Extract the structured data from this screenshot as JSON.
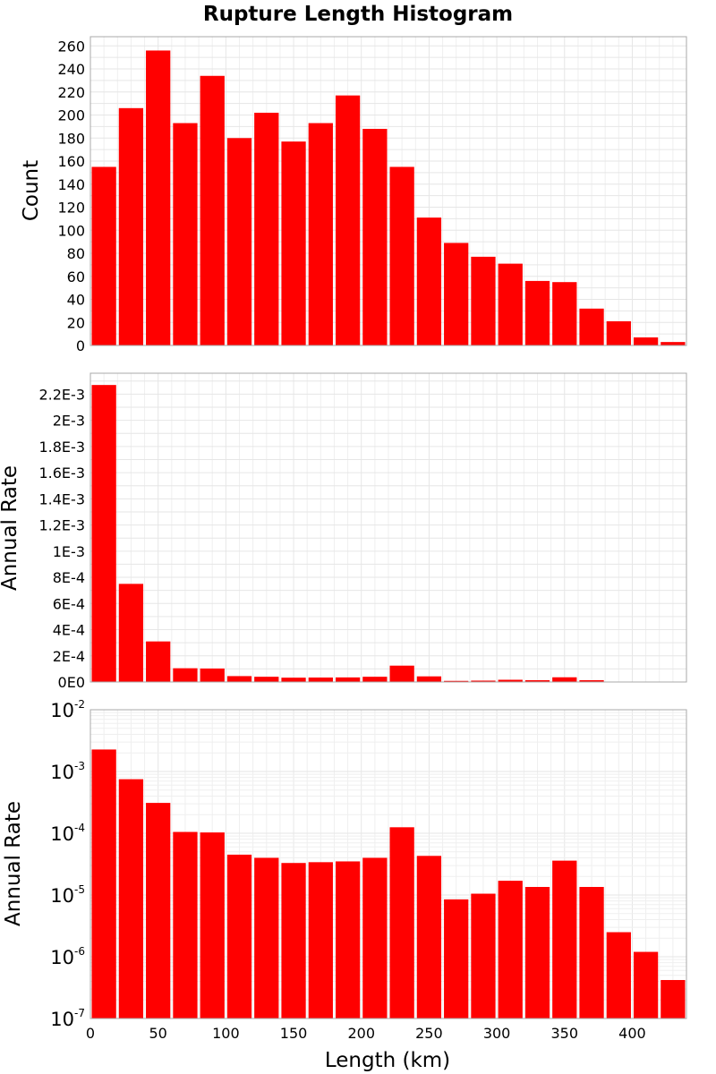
{
  "title": "Rupture Length Histogram",
  "chart_data": [
    {
      "type": "bar",
      "title": "Rupture Length Histogram",
      "xlabel": "",
      "ylabel": "Count",
      "bin_width": 20,
      "x": [
        10,
        30,
        50,
        70,
        90,
        110,
        130,
        150,
        170,
        190,
        210,
        230,
        250,
        270,
        290,
        310,
        330,
        350,
        370,
        390,
        410,
        430
      ],
      "values": [
        155,
        206,
        256,
        193,
        234,
        180,
        202,
        177,
        193,
        217,
        188,
        155,
        111,
        89,
        77,
        71,
        56,
        55,
        32,
        21,
        7,
        3
      ],
      "xlim": [
        0,
        440
      ],
      "ylim": [
        0,
        268
      ],
      "yticks": [
        0,
        20,
        40,
        60,
        80,
        100,
        120,
        140,
        160,
        180,
        200,
        220,
        240,
        260
      ],
      "ytick_labels": [
        "0",
        "20",
        "40",
        "60",
        "80",
        "100",
        "120",
        "140",
        "160",
        "180",
        "200",
        "220",
        "240",
        "260"
      ],
      "grid": true,
      "color": "#ff0000"
    },
    {
      "type": "bar",
      "xlabel": "",
      "ylabel": "Annual Rate",
      "bin_width": 20,
      "x": [
        10,
        30,
        50,
        70,
        90,
        110,
        130,
        150,
        170,
        190,
        210,
        230,
        250,
        270,
        290,
        310,
        330,
        350,
        370,
        390,
        410,
        430
      ],
      "values": [
        0.00227,
        0.00075,
        0.00031,
        0.000105,
        0.000103,
        4.5e-05,
        4e-05,
        3.3e-05,
        3.4e-05,
        3.5e-05,
        4e-05,
        0.000125,
        4.3e-05,
        8.5e-06,
        1.05e-05,
        1.7e-05,
        1.35e-05,
        3.6e-05,
        1.35e-05,
        2.5e-06,
        1.2e-06,
        4.2e-07
      ],
      "xlim": [
        0,
        440
      ],
      "ylim": [
        0,
        0.00236
      ],
      "yticks": [
        0,
        0.0002,
        0.0004,
        0.0006,
        0.0008,
        0.001,
        0.0012,
        0.0014,
        0.0016,
        0.0018,
        0.002,
        0.0022
      ],
      "ytick_labels": [
        "0E0",
        "2E-4",
        "4E-4",
        "6E-4",
        "8E-4",
        "1E-3",
        "1.2E-3",
        "1.4E-3",
        "1.6E-3",
        "1.8E-3",
        "2E-3",
        "2.2E-3"
      ],
      "grid": true,
      "color": "#ff0000"
    },
    {
      "type": "bar",
      "xlabel": "Length (km)",
      "ylabel": "Annual Rate",
      "yscale": "log",
      "bin_width": 20,
      "x": [
        10,
        30,
        50,
        70,
        90,
        110,
        130,
        150,
        170,
        190,
        210,
        230,
        250,
        270,
        290,
        310,
        330,
        350,
        370,
        390,
        410,
        430
      ],
      "values": [
        0.00227,
        0.00075,
        0.00031,
        0.000105,
        0.000103,
        4.5e-05,
        4e-05,
        3.3e-05,
        3.4e-05,
        3.5e-05,
        4e-05,
        0.000125,
        4.3e-05,
        8.5e-06,
        1.05e-05,
        1.7e-05,
        1.35e-05,
        3.6e-05,
        1.35e-05,
        2.5e-06,
        1.2e-06,
        4.2e-07
      ],
      "xlim": [
        0,
        440
      ],
      "ylim": [
        1e-07,
        0.01
      ],
      "ytick_exponents": [
        -7,
        -6,
        -5,
        -4,
        -3,
        -2
      ],
      "ytick_base": "10",
      "xticks": [
        0,
        50,
        100,
        150,
        200,
        250,
        300,
        350,
        400
      ],
      "xtick_labels": [
        "0",
        "50",
        "100",
        "150",
        "200",
        "250",
        "300",
        "350",
        "400"
      ],
      "grid": true,
      "color": "#ff0000"
    }
  ]
}
